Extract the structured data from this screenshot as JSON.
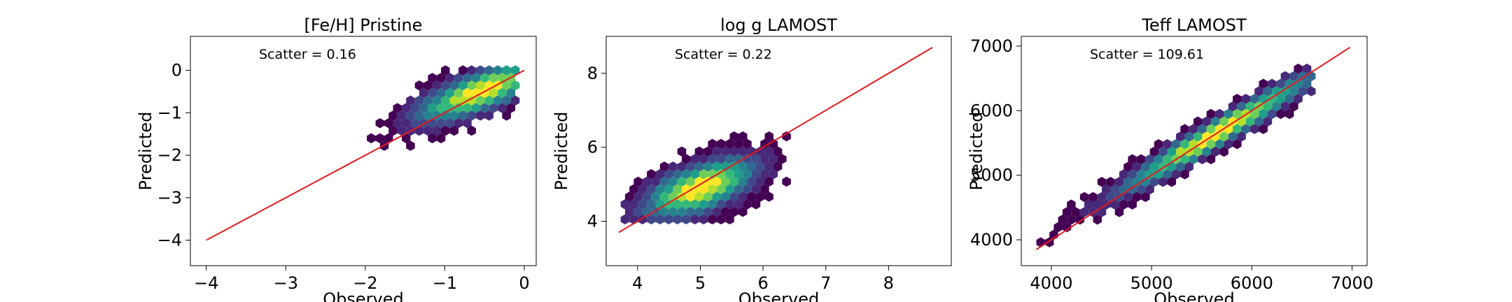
{
  "chart_data": [
    {
      "type": "hexbin",
      "title": "[Fe/H] Pristine",
      "xlabel": "Observed",
      "ylabel": "Predicted",
      "annotation": "Scatter = 0.16",
      "xlim": [
        -4.2,
        0.15
      ],
      "ylim": [
        -4.6,
        0.8
      ],
      "xticks": [
        -4,
        -3,
        -2,
        -1,
        0
      ],
      "xtick_labels": [
        "−4",
        "−3",
        "−2",
        "−1",
        "0"
      ],
      "yticks": [
        -4,
        -3,
        -2,
        -1,
        0
      ],
      "ytick_labels": [
        "−4",
        "−3",
        "−2",
        "−1",
        "0"
      ],
      "fit_line": {
        "x": [
          -4,
          0
        ],
        "y": [
          -4,
          0
        ],
        "color": "#e41a1c"
      },
      "density": {
        "center": [
          -0.55,
          -0.5
        ],
        "sigma_x": 0.45,
        "sigma_y": 0.4,
        "rho": 0.75,
        "xrange": [
          -2.2,
          -0.1
        ],
        "yrange": [
          -2.3,
          0.0
        ]
      }
    },
    {
      "type": "hexbin",
      "title": "log g LAMOST",
      "xlabel": "Observed",
      "ylabel": "Predicted",
      "annotation": "Scatter = 0.22",
      "xlim": [
        3.5,
        9.0
      ],
      "ylim": [
        2.8,
        9.0
      ],
      "xticks": [
        4,
        5,
        6,
        7,
        8
      ],
      "xtick_labels": [
        "4",
        "5",
        "6",
        "7",
        "8"
      ],
      "yticks": [
        4,
        6,
        8
      ],
      "ytick_labels": [
        "4",
        "6",
        "8"
      ],
      "fit_line": {
        "x": [
          3.7,
          8.7
        ],
        "y": [
          3.7,
          8.7
        ],
        "color": "#e41a1c"
      },
      "density": {
        "center": [
          5.0,
          4.9
        ],
        "sigma_x": 0.5,
        "sigma_y": 0.45,
        "rho": 0.6,
        "xrange": [
          3.8,
          6.4
        ],
        "yrange": [
          3.85,
          6.5
        ]
      }
    },
    {
      "type": "hexbin",
      "title": "Teff LAMOST",
      "xlabel": "Observed",
      "ylabel": "Predicted",
      "annotation": "Scatter = 109.61",
      "xlim": [
        3700,
        7150
      ],
      "ylim": [
        3600,
        7150
      ],
      "xticks": [
        4000,
        5000,
        6000,
        7000
      ],
      "xtick_labels": [
        "4000",
        "5000",
        "6000",
        "7000"
      ],
      "yticks": [
        4000,
        5000,
        6000,
        7000
      ],
      "ytick_labels": [
        "4000",
        "5000",
        "6000",
        "7000"
      ],
      "fit_line": {
        "x": [
          3850,
          6980
        ],
        "y": [
          3850,
          6980
        ],
        "color": "#e41a1c"
      },
      "density": {
        "center": [
          5650,
          5650
        ],
        "sigma_x": 550,
        "sigma_y": 520,
        "rho": 0.97,
        "xrange": [
          3850,
          6600
        ],
        "yrange": [
          3800,
          6650
        ]
      }
    }
  ]
}
